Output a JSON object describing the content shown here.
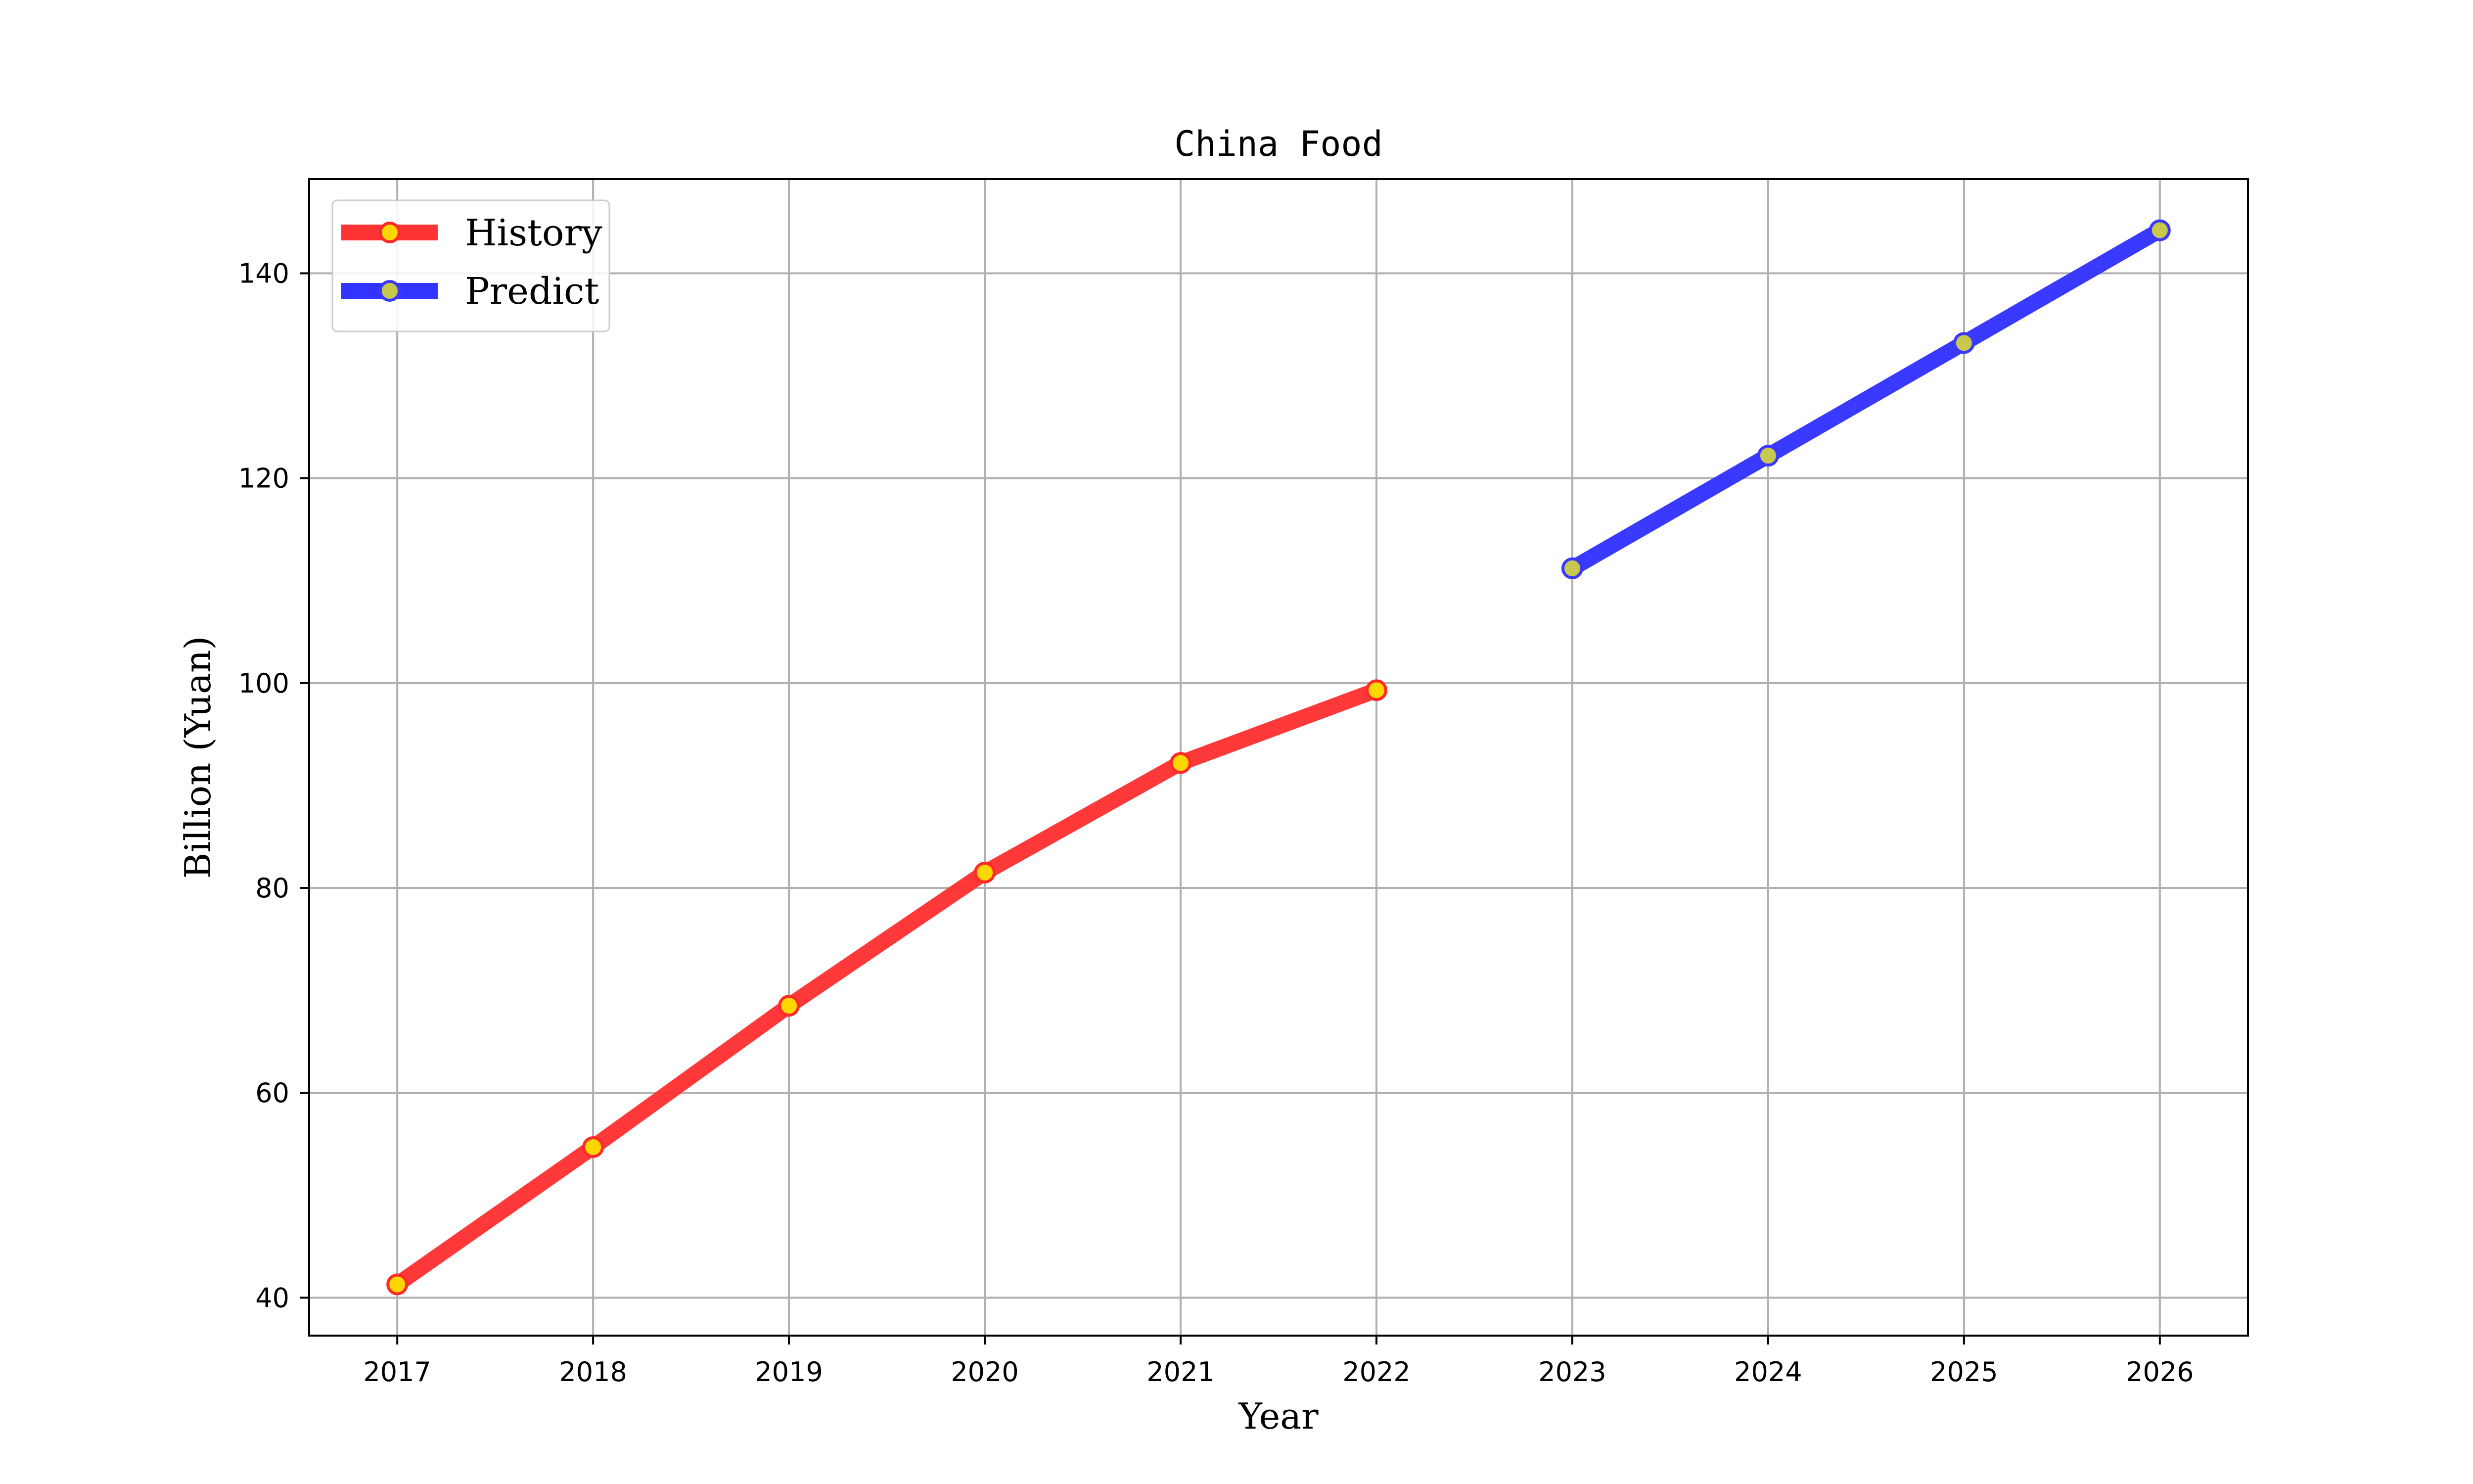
{
  "chart_data": {
    "type": "line",
    "title": "China Food",
    "xlabel": "Year",
    "ylabel": "Billion (Yuan)",
    "x_ticks": [
      "2017",
      "2018",
      "2019",
      "2020",
      "2021",
      "2022",
      "2023",
      "2024",
      "2025",
      "2026"
    ],
    "y_ticks": [
      "40",
      "60",
      "80",
      "100",
      "120",
      "140"
    ],
    "xlim": [
      2016.55,
      2026.45
    ],
    "ylim": [
      36.3,
      149.2
    ],
    "grid": true,
    "legend_position": "top-left",
    "series": [
      {
        "name": "History",
        "color": "#ff3333",
        "marker_face": "#ffd700",
        "marker_edge": "#ff2a2a",
        "x": [
          2017,
          2018,
          2019,
          2020,
          2021,
          2022
        ],
        "y": [
          41.3,
          54.7,
          68.5,
          81.5,
          92.2,
          99.3
        ]
      },
      {
        "name": "Predict",
        "color": "#3333ff",
        "marker_face": "#c8c84e",
        "marker_edge": "#3a3aff",
        "x": [
          2023,
          2024,
          2025,
          2026
        ],
        "y": [
          111.2,
          122.2,
          133.2,
          144.2
        ]
      }
    ]
  }
}
